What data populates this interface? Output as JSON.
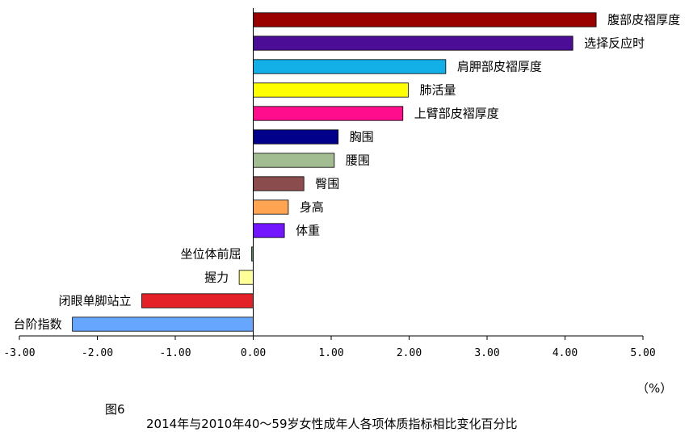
{
  "figure_label": "图6",
  "unit_label": "（%）",
  "chart_data": {
    "type": "bar",
    "orientation": "horizontal",
    "title": "2014年与2010年40～59岁女性成年人各项体质指标相比变化百分比",
    "xlabel": "（%）",
    "ylabel": "",
    "xlim": [
      -3,
      5
    ],
    "xticks": [
      -3,
      -2,
      -1,
      0,
      1,
      2,
      3,
      4,
      5
    ],
    "tick_labels": [
      "-3.00",
      "-2.00",
      "-1.00",
      "0.00",
      "1.00",
      "2.00",
      "3.00",
      "4.00",
      "5.00"
    ],
    "grid": false,
    "legend": "none",
    "categories": [
      "腹部皮褶厚度",
      "选择反应时",
      "肩胛部皮褶厚度",
      "肺活量",
      "上臂部皮褶厚度",
      "胸围",
      "腰围",
      "臀围",
      "身高",
      "体重",
      "坐位体前屈",
      "握力",
      "闭眼单脚站立",
      "台阶指数"
    ],
    "values": [
      4.4,
      4.1,
      2.47,
      1.99,
      1.92,
      1.09,
      1.04,
      0.65,
      0.45,
      0.4,
      -0.02,
      -0.18,
      -1.43,
      -2.32
    ],
    "colors": [
      "#990000",
      "#4B0C96",
      "#12B0E6",
      "#FFFF00",
      "#FF0D8C",
      "#00008B",
      "#A2BD92",
      "#8A4C4C",
      "#FFA552",
      "#7316FF",
      "#3A9A55",
      "#FFFF99",
      "#E42127",
      "#66A6FF"
    ]
  }
}
